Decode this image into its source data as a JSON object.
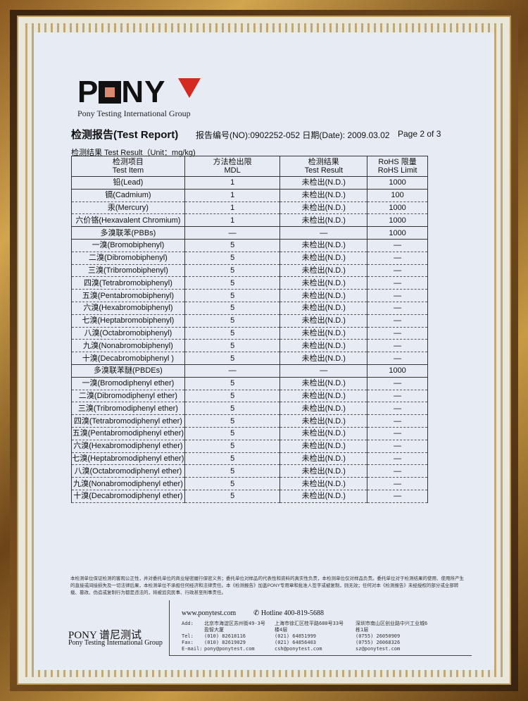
{
  "header": {
    "logo_text": "PONY",
    "group": "Pony Testing International Group",
    "title": "检测报告(Test Report)",
    "report_no": "报告编号(NO):0902252-052",
    "date": "日期(Date): 2009.03.02",
    "page": "Page 2 of 3",
    "unit_line": "检测结果 Test Result（Unit：mg/kg)"
  },
  "table": {
    "headers": [
      [
        "检测项目",
        "Test Item"
      ],
      [
        "方法检出限",
        "MDL"
      ],
      [
        "检测结果",
        "Test Result"
      ],
      [
        "RoHS 限量",
        "RoHS Limit"
      ]
    ],
    "rows": [
      [
        "铅(Lead)",
        "1",
        "未检出(N.D.)",
        "1000"
      ],
      [
        "镉(Cadmium)",
        "1",
        "未检出(N.D.)",
        "100"
      ],
      [
        "汞(Mercury)",
        "1",
        "未检出(N.D.)",
        "1000"
      ],
      [
        "六价铬(Hexavalent Chromium)",
        "1",
        "未检出(N.D.)",
        "1000"
      ],
      [
        "多溴联苯(PBBs)",
        "—",
        "—",
        "1000"
      ],
      [
        "一溴(Bromobiphenyl)",
        "5",
        "未检出(N.D.)",
        "—"
      ],
      [
        "二溴(Dibromobiphenyl)",
        "5",
        "未检出(N.D.)",
        "—"
      ],
      [
        "三溴(Tribromobiphenyl)",
        "5",
        "未检出(N.D.)",
        "—"
      ],
      [
        "四溴(Tetrabromobiphenyl)",
        "5",
        "未检出(N.D.)",
        "—"
      ],
      [
        "五溴(Pentabromobiphenyl)",
        "5",
        "未检出(N.D.)",
        "—"
      ],
      [
        "六溴(Hexabromobiphenyl)",
        "5",
        "未检出(N.D.)",
        "—"
      ],
      [
        "七溴(Heptabromobiphenyl)",
        "5",
        "未检出(N.D.)",
        "—"
      ],
      [
        "八溴(Octabromobiphenyl)",
        "5",
        "未检出(N.D.)",
        "—"
      ],
      [
        "九溴(Nonabromobiphenyl)",
        "5",
        "未检出(N.D.)",
        "—"
      ],
      [
        "十溴(Decabromobiphenyl )",
        "5",
        "未检出(N.D.)",
        "—"
      ],
      [
        "多溴联苯醚(PBDEs)",
        "—",
        "—",
        "1000"
      ],
      [
        "一溴(Bromodiphenyl ether)",
        "5",
        "未检出(N.D.)",
        "—"
      ],
      [
        "二溴(Dibromodiphenyl ether)",
        "5",
        "未检出(N.D.)",
        "—"
      ],
      [
        "三溴(Tribromodiphenyl ether)",
        "5",
        "未检出(N.D.)",
        "—"
      ],
      [
        "四溴(Tetrabromodiphenyl ether)",
        "5",
        "未检出(N.D.)",
        "—"
      ],
      [
        "五溴(Pentabromodiphenyl ether)",
        "5",
        "未检出(N.D.)",
        "—"
      ],
      [
        "六溴(Hexabromodiphenyl ether)",
        "5",
        "未检出(N.D.)",
        "—"
      ],
      [
        "七溴(Heptabromodiphenyl ether)",
        "5",
        "未检出(N.D.)",
        "—"
      ],
      [
        "八溴(Octabromodiphenyl ether)",
        "5",
        "未检出(N.D.)",
        "—"
      ],
      [
        "九溴(Nonabromodiphenyl ether)",
        "5",
        "未检出(N.D.)",
        "—"
      ],
      [
        "十溴(Decabromodiphenyl ether)",
        "5",
        "未检出(N.D.)",
        "—"
      ]
    ]
  },
  "footer": {
    "disclaimer": "本检测单位保证检测的客观公正性，并对委托单位的商业秘密履行保密义务；委托单位对样品的代表性和资料的真实性负责，本检测单位仅对样品负责。委托单位对于检测结果的使用、使用所产生的直接或间接损失及一切法律后果，本检测单位不承担任何经济和法律责任。本《检测报告》加盖PONY专用章和批准人签字或被复制，则无效；任何对本《检测报告》未经授权的部分或全部转载、篡改、伪造或复制行为都是违法的，将被追究民事、行政甚至刑事责任。",
    "brand_cn": "PONY 谱尼测试",
    "brand_en": "Pony Testing International Group",
    "website": "www.ponytest.com",
    "hotline": "Hotline 400-819-5688",
    "labels": "Add:\n\nTel:\nFax:\nE-mail:",
    "offices": [
      "北京市海淀区苏州街49-3号\n盈智大厦\n(010) 82618116\n(010) 82619029\npony@ponytest.com",
      "上海市徐汇区桂平路680号33号\n楼4层\n(021) 64851999\n(021) 64856403\ncsh@ponytest.com",
      "深圳市南山区创业路中兴工业城6\n栋1层\n(0755) 26050909\n(0755) 26068326\nsz@ponytest.com"
    ]
  },
  "colors": {
    "logo_red": "#d42a22",
    "paper": "#e7ebf3",
    "frame_gold": "#c89a44"
  }
}
